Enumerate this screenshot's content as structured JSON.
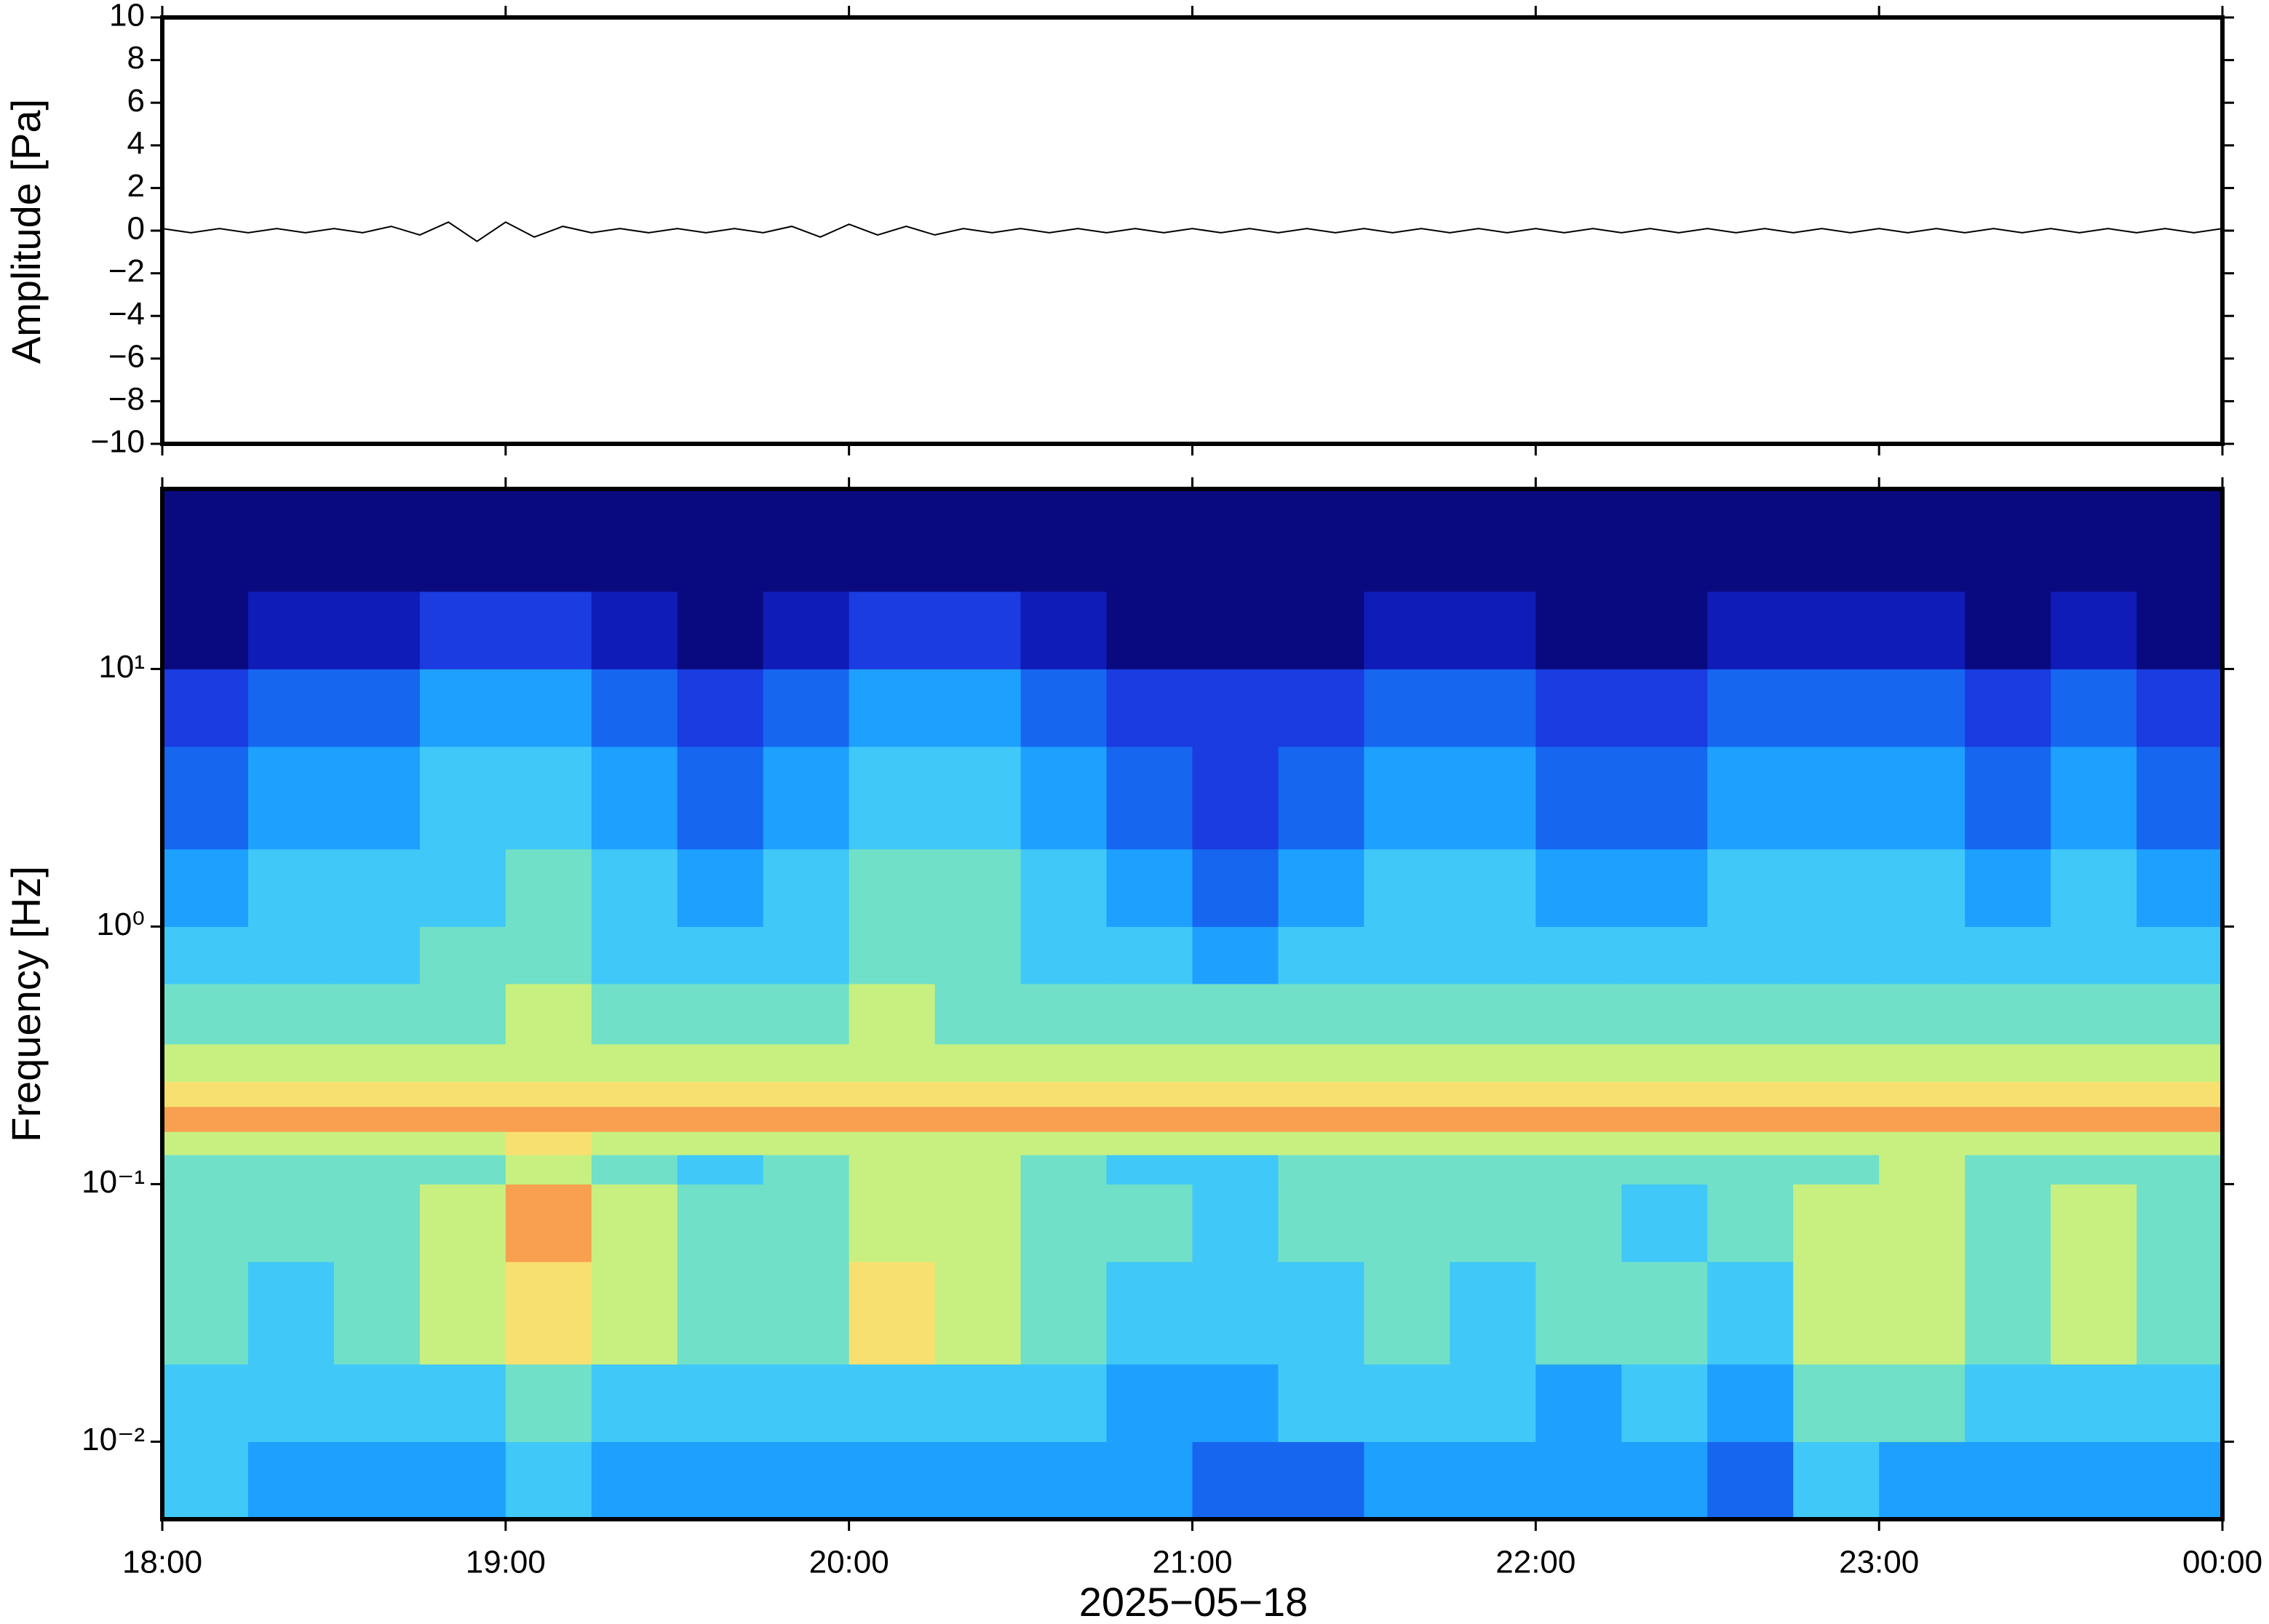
{
  "chart_data": [
    {
      "type": "line",
      "ylabel": "Amplitude [Pa]",
      "color": "#000000",
      "x": [
        0,
        5,
        10,
        15,
        20,
        25,
        30,
        35,
        40,
        45,
        50,
        55,
        60,
        65,
        70,
        75,
        80,
        85,
        90,
        95,
        100,
        105,
        110,
        115,
        120,
        125,
        130,
        135,
        140,
        145,
        150,
        155,
        160,
        165,
        170,
        175,
        180,
        185,
        190,
        195,
        200,
        205,
        210,
        215,
        220,
        225,
        230,
        235,
        240,
        245,
        250,
        255,
        260,
        265,
        270,
        275,
        280,
        285,
        290,
        295,
        300,
        305,
        310,
        315,
        320,
        325,
        330,
        335,
        340,
        345,
        350,
        355,
        360
      ],
      "values": [
        0.1,
        -0.1,
        0.1,
        -0.1,
        0.1,
        -0.1,
        0.1,
        -0.1,
        0.2,
        -0.2,
        0.4,
        -0.5,
        0.4,
        -0.3,
        0.2,
        -0.1,
        0.1,
        -0.1,
        0.1,
        -0.1,
        0.1,
        -0.1,
        0.2,
        -0.3,
        0.3,
        -0.2,
        0.2,
        -0.2,
        0.1,
        -0.1,
        0.1,
        -0.1,
        0.1,
        -0.1,
        0.1,
        -0.1,
        0.1,
        -0.1,
        0.1,
        -0.1,
        0.1,
        -0.1,
        0.1,
        -0.1,
        0.1,
        -0.1,
        0.1,
        -0.1,
        0.1,
        -0.1,
        0.1,
        -0.1,
        0.1,
        -0.1,
        0.1,
        -0.1,
        0.1,
        -0.1,
        0.1,
        -0.1,
        0.1,
        -0.1,
        0.1,
        -0.1,
        0.1,
        -0.1,
        0.1,
        -0.1,
        0.1,
        -0.1,
        0.1,
        -0.1,
        0.1
      ],
      "xlim": [
        0,
        360
      ],
      "xticks": [
        0,
        60,
        120,
        180,
        240,
        300,
        360
      ],
      "ylim": [
        -10,
        10
      ],
      "yticks": [
        {
          "value": -10,
          "label": "−10"
        },
        {
          "value": -8,
          "label": "−8"
        },
        {
          "value": -6,
          "label": "−6"
        },
        {
          "value": -4,
          "label": "−4"
        },
        {
          "value": -2,
          "label": "−2"
        },
        0,
        2,
        4,
        6,
        8,
        10
      ]
    },
    {
      "type": "heatmap",
      "ylabel": "Frequency [Hz]",
      "xlabel": "2025−05−18",
      "log_y": true,
      "xlim": [
        0,
        360
      ],
      "xticks": [
        {
          "value": 0,
          "label": "18:00"
        },
        {
          "value": 60,
          "label": "19:00"
        },
        {
          "value": 120,
          "label": "20:00"
        },
        {
          "value": 180,
          "label": "21:00"
        },
        {
          "value": 240,
          "label": "22:00"
        },
        {
          "value": 300,
          "label": "23:00"
        },
        {
          "value": 360,
          "label": "00:00"
        }
      ],
      "ylim": [
        0.005,
        50
      ],
      "yticks": [
        {
          "value": 0.01,
          "label": "10⁻²"
        },
        {
          "value": 0.1,
          "label": "10⁻¹"
        },
        {
          "value": 1,
          "label": "10⁰"
        },
        {
          "value": 10,
          "label": "10¹"
        }
      ],
      "xbins": [
        0,
        15,
        30,
        45,
        60,
        75,
        90,
        105,
        120,
        135,
        150,
        165,
        180,
        195,
        210,
        225,
        240,
        255,
        270,
        285,
        300,
        315,
        330,
        345,
        360
      ],
      "ybins": [
        0.005,
        0.01,
        0.02,
        0.05,
        0.1,
        0.13,
        0.16,
        0.2,
        0.25,
        0.35,
        0.6,
        1,
        2,
        5,
        10,
        20,
        50
      ],
      "colors": [
        "#0a0a80",
        "#0f1cb8",
        "#1a3ce0",
        "#1666f0",
        "#1ea0ff",
        "#40c8f8",
        "#70e0c8",
        "#c8f080",
        "#f8e070",
        "#f8a050",
        "#e83020"
      ],
      "z": [
        [
          5,
          4,
          4,
          4,
          5,
          4,
          4,
          4,
          4,
          4,
          4,
          4,
          3,
          3,
          4,
          4,
          4,
          4,
          3,
          5,
          4,
          4,
          4,
          4
        ],
        [
          5,
          5,
          5,
          5,
          6,
          5,
          5,
          5,
          5,
          5,
          5,
          4,
          4,
          5,
          5,
          5,
          4,
          5,
          4,
          6,
          6,
          5,
          5,
          5
        ],
        [
          6,
          5,
          6,
          7,
          8,
          7,
          6,
          6,
          8,
          7,
          6,
          5,
          5,
          5,
          6,
          5,
          6,
          6,
          5,
          7,
          7,
          6,
          7,
          6
        ],
        [
          6,
          6,
          6,
          7,
          9,
          7,
          6,
          6,
          7,
          7,
          6,
          6,
          5,
          6,
          6,
          6,
          6,
          5,
          6,
          7,
          7,
          6,
          7,
          6
        ],
        [
          6,
          6,
          6,
          6,
          7,
          6,
          5,
          6,
          7,
          7,
          6,
          5,
          5,
          6,
          6,
          6,
          6,
          6,
          6,
          6,
          7,
          6,
          6,
          6
        ],
        [
          7,
          7,
          7,
          7,
          8,
          7,
          7,
          7,
          7,
          7,
          7,
          7,
          7,
          7,
          7,
          7,
          7,
          7,
          7,
          7,
          7,
          7,
          7,
          7
        ],
        [
          9,
          9,
          9,
          9,
          9,
          9,
          9,
          9,
          9,
          9,
          9,
          9,
          9,
          9,
          9,
          9,
          9,
          9,
          9,
          9,
          9,
          9,
          9,
          9
        ],
        [
          8,
          8,
          8,
          8,
          8,
          8,
          8,
          8,
          8,
          8,
          8,
          8,
          8,
          8,
          8,
          8,
          8,
          8,
          8,
          8,
          8,
          8,
          8,
          8
        ],
        [
          7,
          7,
          7,
          7,
          7,
          7,
          7,
          7,
          7,
          7,
          7,
          7,
          7,
          7,
          7,
          7,
          7,
          7,
          7,
          7,
          7,
          7,
          7,
          7
        ],
        [
          6,
          6,
          6,
          6,
          7,
          6,
          6,
          6,
          7,
          6,
          6,
          6,
          6,
          6,
          6,
          6,
          6,
          6,
          6,
          6,
          6,
          6,
          6,
          6
        ],
        [
          5,
          5,
          5,
          6,
          6,
          5,
          5,
          5,
          6,
          6,
          5,
          5,
          4,
          5,
          5,
          5,
          5,
          5,
          5,
          5,
          5,
          5,
          5,
          5
        ],
        [
          4,
          5,
          5,
          5,
          6,
          5,
          4,
          5,
          6,
          6,
          5,
          4,
          3,
          4,
          5,
          5,
          4,
          4,
          5,
          5,
          5,
          4,
          5,
          4
        ],
        [
          3,
          4,
          4,
          5,
          5,
          4,
          3,
          4,
          5,
          5,
          4,
          3,
          2,
          3,
          4,
          4,
          3,
          3,
          4,
          4,
          4,
          3,
          4,
          3
        ],
        [
          2,
          3,
          3,
          4,
          4,
          3,
          2,
          3,
          4,
          4,
          3,
          2,
          2,
          2,
          3,
          3,
          2,
          2,
          3,
          3,
          3,
          2,
          3,
          2
        ],
        [
          0,
          1,
          1,
          2,
          2,
          1,
          0,
          1,
          2,
          2,
          1,
          0,
          0,
          0,
          1,
          1,
          0,
          0,
          1,
          1,
          1,
          0,
          1,
          0
        ],
        [
          0,
          0,
          0,
          0,
          0,
          0,
          0,
          0,
          0,
          0,
          0,
          0,
          0,
          0,
          0,
          0,
          0,
          0,
          0,
          0,
          0,
          0,
          0,
          0
        ]
      ]
    }
  ]
}
